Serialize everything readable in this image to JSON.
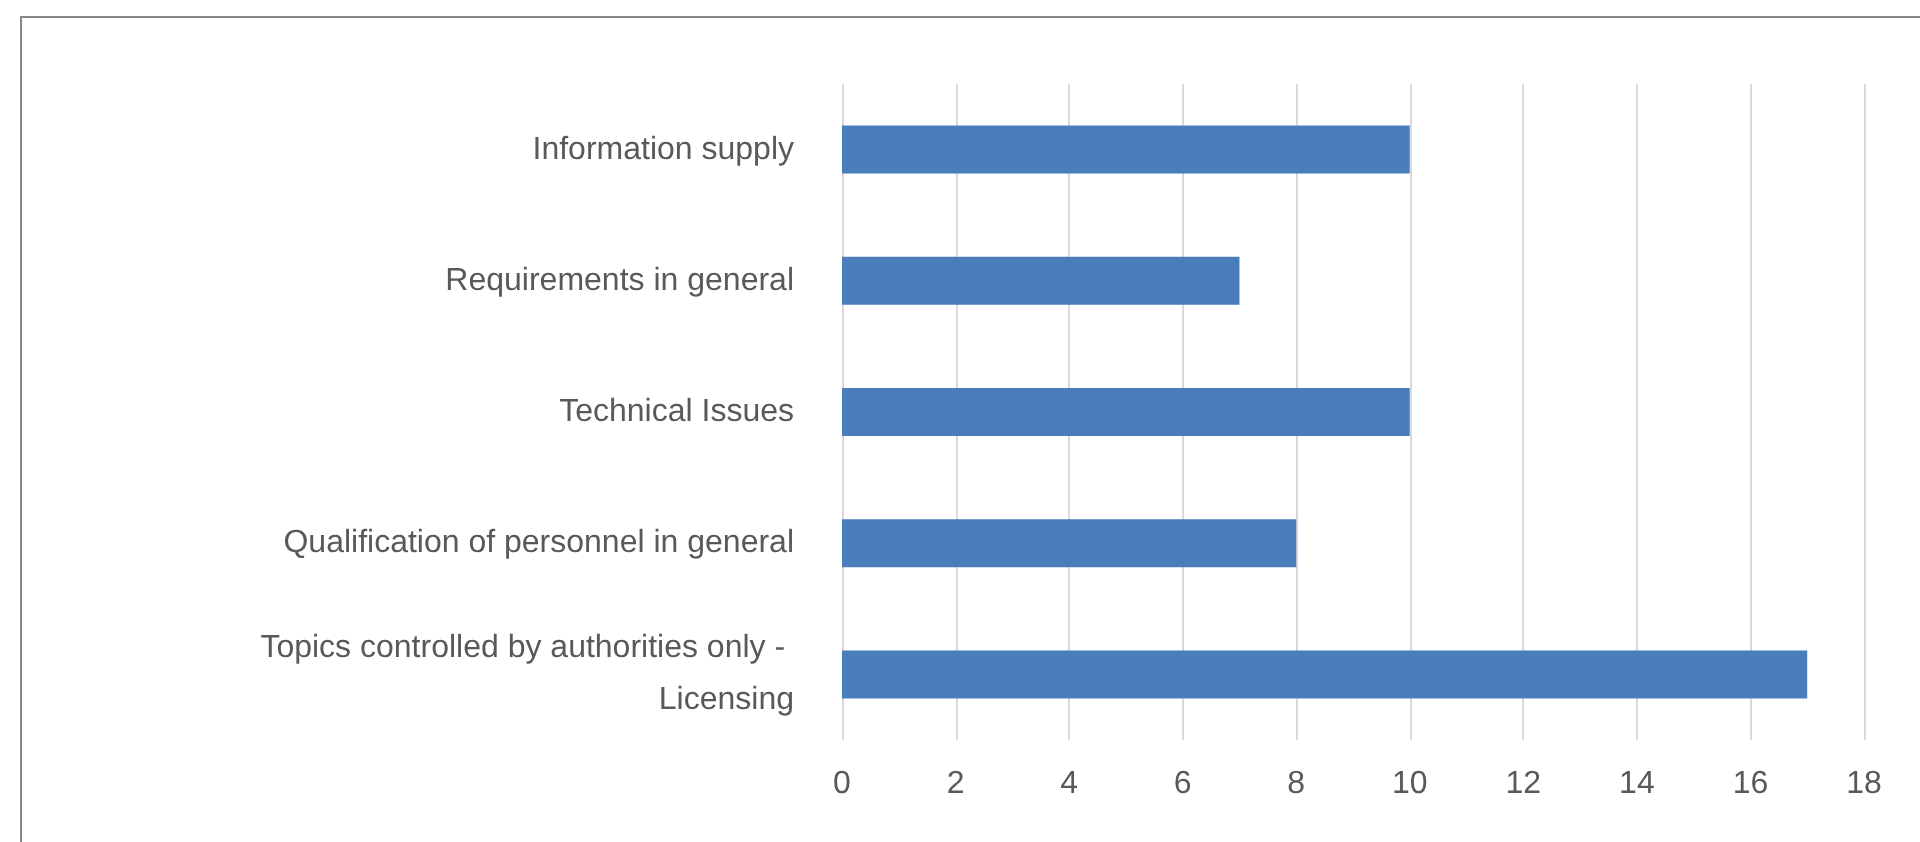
{
  "chart_data": {
    "type": "bar",
    "orientation": "horizontal",
    "categories": [
      "Information supply",
      "Requirements in general",
      "Technical Issues",
      "Qualification of personnel in general",
      "Topics controlled by authorities only - Licensing"
    ],
    "values": [
      10,
      7,
      10,
      8,
      17
    ],
    "color": "#4a7ebb",
    "xlim": [
      0,
      18
    ],
    "xticks": [
      0,
      2,
      4,
      6,
      8,
      10,
      12,
      14,
      16,
      18
    ],
    "grid": "x"
  }
}
